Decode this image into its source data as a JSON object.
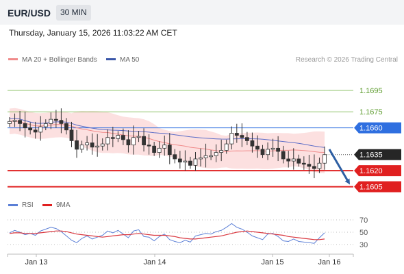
{
  "header": {
    "symbol": "EUR/USD",
    "timeframe": "30 MIN"
  },
  "datetime": "Thursday, January 15, 2026 11:03:22 AM CET",
  "legend": {
    "ma20": "MA 20 + Bollinger Bands",
    "ma50": "MA 50",
    "rsi": "RSI",
    "rsi_ma": "9MA"
  },
  "source": "Research © 2026 Trading Central",
  "colors": {
    "ma20": "#f08a8a",
    "bands": "#fbdada",
    "ma50": "#5b6cc7",
    "up_candle": "#ffffff",
    "down_candle": "#333333",
    "resistance": "#8fc36b",
    "pivot": "#2f6fe0",
    "support": "#e02020",
    "rsi": "#5b7fd6",
    "rsi_ma": "#d9363e",
    "arrow": "#2e5fa3"
  },
  "chart_data": [
    {
      "type": "candlestick",
      "ylim": [
        1.1599,
        1.1718
      ],
      "x_labels": [
        "Jan 13",
        "Jan 14",
        "Jan 15",
        "Jan 16"
      ],
      "levels": [
        {
          "label": "1.1695",
          "value": 1.1695,
          "kind": "resistance"
        },
        {
          "label": "1.1675",
          "value": 1.1675,
          "kind": "resistance"
        },
        {
          "label": "1.1660",
          "value": 1.166,
          "kind": "pivot"
        },
        {
          "label": "1.1620",
          "value": 1.162,
          "kind": "support"
        },
        {
          "label": "1.1605",
          "value": 1.1605,
          "kind": "support"
        }
      ],
      "last_price": {
        "label": "1.1635",
        "value": 1.1635
      },
      "forecast_target": 1.1605,
      "close_series": [
        1.1666,
        1.1667,
        1.1664,
        1.166,
        1.1658,
        1.1656,
        1.1661,
        1.1664,
        1.1668,
        1.1667,
        1.1664,
        1.1658,
        1.1648,
        1.164,
        1.1644,
        1.1646,
        1.1642,
        1.1643,
        1.1645,
        1.1651,
        1.165,
        1.1653,
        1.1649,
        1.1644,
        1.1651,
        1.1652,
        1.1644,
        1.1643,
        1.1637,
        1.1641,
        1.1644,
        1.1635,
        1.1631,
        1.1628,
        1.1629,
        1.1625,
        1.1631,
        1.1632,
        1.1634,
        1.1634,
        1.1637,
        1.1639,
        1.1645,
        1.1655,
        1.1653,
        1.1651,
        1.1648,
        1.1643,
        1.164,
        1.1635,
        1.164,
        1.1641,
        1.1638,
        1.1631,
        1.1629,
        1.1631,
        1.1627,
        1.1626,
        1.1624,
        1.1622,
        1.1627,
        1.1635
      ]
    },
    {
      "type": "line",
      "series": [
        {
          "name": "RSI",
          "values": [
            49,
            53,
            50,
            46,
            48,
            45,
            52,
            55,
            58,
            56,
            51,
            44,
            37,
            33,
            40,
            44,
            39,
            42,
            45,
            52,
            49,
            53,
            47,
            41,
            52,
            54,
            43,
            42,
            36,
            43,
            47,
            38,
            35,
            33,
            37,
            34,
            44,
            46,
            48,
            47,
            51,
            53,
            58,
            64,
            58,
            55,
            50,
            44,
            41,
            38,
            47,
            48,
            43,
            36,
            35,
            39,
            35,
            34,
            33,
            32,
            41,
            49
          ]
        },
        {
          "name": "9MA",
          "values": [
            48,
            49,
            49,
            48,
            48,
            48,
            49,
            50,
            51,
            52,
            52,
            51,
            49,
            47,
            46,
            45,
            44,
            43,
            42,
            43,
            44,
            45,
            46,
            46,
            47,
            48,
            47,
            46,
            45,
            45,
            45,
            44,
            43,
            41,
            40,
            39,
            39,
            40,
            41,
            42,
            43,
            44,
            46,
            48,
            50,
            51,
            52,
            51,
            50,
            49,
            48,
            47,
            46,
            45,
            43,
            42,
            41,
            40,
            39,
            38,
            38,
            39
          ]
        }
      ],
      "y_ticks": [
        70,
        50,
        30
      ],
      "ylim": [
        20,
        80
      ]
    }
  ]
}
